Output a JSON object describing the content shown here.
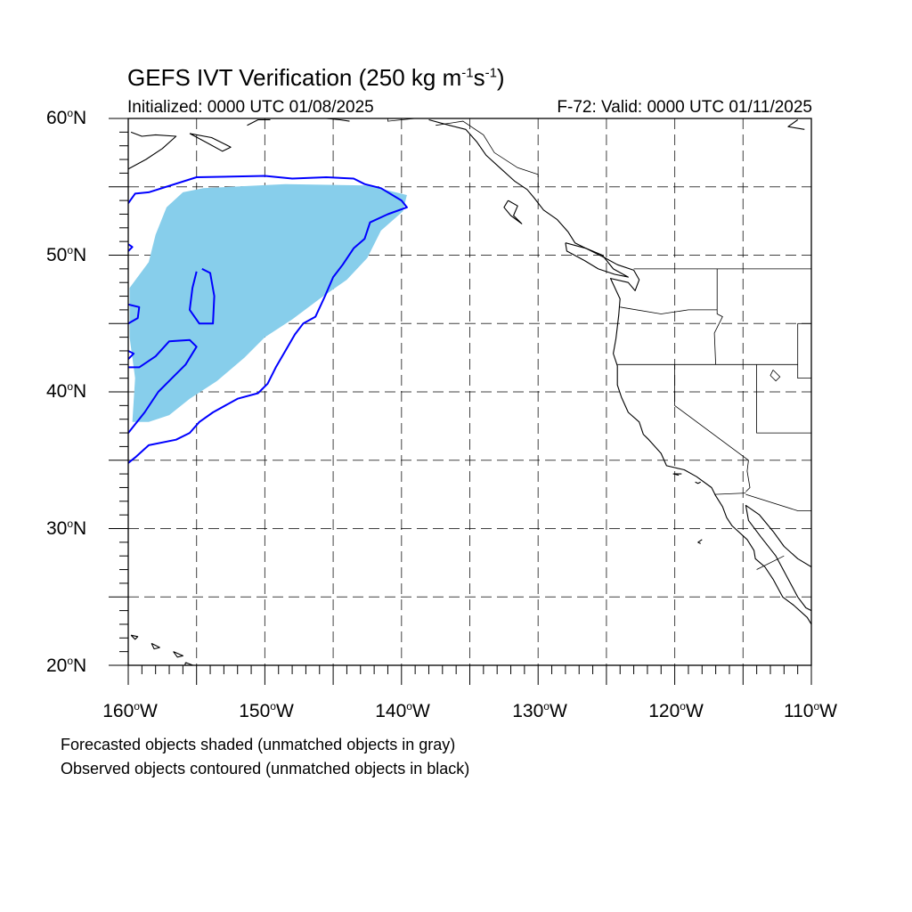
{
  "title": {
    "main": "GEFS IVT Verification (250 kg m",
    "exp1": "-1",
    "mid": "s",
    "exp2": "-1",
    "end": ")"
  },
  "subtitle_left": "Initialized: 0000 UTC 01/08/2025",
  "subtitle_right": "F-72: Valid: 0000 UTC 01/11/2025",
  "lat_labels": [
    {
      "deg": "60",
      "hemi": "N"
    },
    {
      "deg": "50",
      "hemi": "N"
    },
    {
      "deg": "40",
      "hemi": "N"
    },
    {
      "deg": "30",
      "hemi": "N"
    },
    {
      "deg": "20",
      "hemi": "N"
    }
  ],
  "lon_labels": [
    {
      "deg": "160",
      "hemi": "W"
    },
    {
      "deg": "150",
      "hemi": "W"
    },
    {
      "deg": "140",
      "hemi": "W"
    },
    {
      "deg": "130",
      "hemi": "W"
    },
    {
      "deg": "120",
      "hemi": "W"
    },
    {
      "deg": "110",
      "hemi": "W"
    }
  ],
  "footer_line1": "Forecasted objects shaded (unmatched objects in gray)",
  "footer_line2": "Observed objects contoured (unmatched objects in black)",
  "colors": {
    "forecast_fill": "#87ceeb",
    "observed_contour": "#0000ff",
    "coastline": "#000000",
    "grid": "#000000"
  },
  "map_extent": {
    "lon_min": -160,
    "lon_max": -110,
    "lat_min": 20,
    "lat_max": 60
  },
  "forecast_object": [
    [
      -159.9,
      47.6
    ],
    [
      -158.5,
      49.5
    ],
    [
      -158.0,
      51.5
    ],
    [
      -157.2,
      53.5
    ],
    [
      -156.0,
      54.6
    ],
    [
      -154.5,
      54.9
    ],
    [
      -148.5,
      55.2
    ],
    [
      -142.5,
      55.1
    ],
    [
      -139.6,
      54.4
    ],
    [
      -139.9,
      53.2
    ],
    [
      -141.5,
      51.8
    ],
    [
      -142.5,
      49.8
    ],
    [
      -144.0,
      48.2
    ],
    [
      -146.0,
      46.8
    ],
    [
      -148.0,
      45.3
    ],
    [
      -150.0,
      44.0
    ],
    [
      -151.5,
      42.5
    ],
    [
      -153.5,
      40.8
    ],
    [
      -155.5,
      39.5
    ],
    [
      -157.0,
      38.3
    ],
    [
      -158.5,
      37.8
    ],
    [
      -159.7,
      37.8
    ],
    [
      -159.5,
      41.0
    ],
    [
      -159.9,
      44.0
    ]
  ],
  "observed_contours": [
    [
      [
        -160.0,
        53.8
      ],
      [
        -159.5,
        54.5
      ],
      [
        -158.5,
        54.6
      ],
      [
        -155.0,
        55.7
      ],
      [
        -150.0,
        55.8
      ],
      [
        -148.0,
        55.6
      ],
      [
        -145.5,
        55.7
      ],
      [
        -143.5,
        55.6
      ],
      [
        -142.7,
        55.2
      ],
      [
        -141.5,
        54.9
      ],
      [
        -140.0,
        54.0
      ],
      [
        -139.6,
        53.5
      ],
      [
        -141.0,
        53.0
      ],
      [
        -142.3,
        52.4
      ],
      [
        -142.7,
        51.2
      ],
      [
        -143.5,
        50.5
      ],
      [
        -144.3,
        49.3
      ],
      [
        -145.0,
        48.4
      ],
      [
        -145.6,
        47.0
      ],
      [
        -146.3,
        45.5
      ],
      [
        -147.2,
        45.0
      ],
      [
        -147.8,
        44.2
      ],
      [
        -148.5,
        43.0
      ],
      [
        -149.2,
        41.8
      ],
      [
        -149.8,
        40.6
      ],
      [
        -150.5,
        39.9
      ],
      [
        -152.0,
        39.5
      ],
      [
        -153.8,
        38.5
      ],
      [
        -154.8,
        37.8
      ],
      [
        -155.5,
        37.0
      ],
      [
        -156.5,
        36.5
      ],
      [
        -158.5,
        36.1
      ],
      [
        -159.5,
        35.2
      ],
      [
        -160.0,
        34.8
      ]
    ],
    [
      [
        -160.0,
        37.0
      ],
      [
        -158.8,
        38.5
      ],
      [
        -157.8,
        40.0
      ],
      [
        -156.8,
        41.0
      ],
      [
        -155.8,
        42.0
      ],
      [
        -155.0,
        43.3
      ],
      [
        -155.5,
        43.8
      ],
      [
        -157.0,
        43.7
      ],
      [
        -158.0,
        42.6
      ],
      [
        -159.2,
        41.8
      ],
      [
        -160.0,
        41.8
      ]
    ],
    [
      [
        -154.6,
        49.0
      ],
      [
        -154.0,
        48.7
      ],
      [
        -153.7,
        47.0
      ],
      [
        -153.8,
        45.0
      ],
      [
        -154.8,
        45.0
      ],
      [
        -155.5,
        46.0
      ],
      [
        -155.3,
        47.6
      ],
      [
        -155.0,
        48.8
      ]
    ],
    [
      [
        -160.0,
        46.4
      ],
      [
        -159.2,
        46.2
      ],
      [
        -159.3,
        45.4
      ],
      [
        -160.0,
        45.0
      ]
    ],
    [
      [
        -160.0,
        50.8
      ],
      [
        -159.7,
        50.6
      ],
      [
        -160.0,
        50.3
      ]
    ],
    [
      [
        -160.0,
        43.0
      ],
      [
        -159.6,
        42.8
      ],
      [
        -160.0,
        42.4
      ]
    ]
  ],
  "coastlines": [
    [
      [
        -138.0,
        59.9
      ],
      [
        -136.5,
        59.5
      ],
      [
        -135.3,
        59.2
      ],
      [
        -134.5,
        58.3
      ],
      [
        -133.8,
        57.3
      ],
      [
        -132.8,
        56.4
      ],
      [
        -131.7,
        55.4
      ],
      [
        -130.8,
        54.8
      ],
      [
        -130.3,
        54.2
      ],
      [
        -129.6,
        53.3
      ],
      [
        -128.6,
        52.6
      ],
      [
        -127.8,
        51.7
      ],
      [
        -127.3,
        50.9
      ],
      [
        -126.1,
        50.3
      ],
      [
        -125.1,
        49.8
      ],
      [
        -124.2,
        49.3
      ],
      [
        -123.0,
        48.9
      ],
      [
        -122.6,
        48.2
      ],
      [
        -122.9,
        47.4
      ],
      [
        -123.4,
        48.0
      ],
      [
        -124.7,
        48.3
      ],
      [
        -124.0,
        46.8
      ],
      [
        -124.1,
        45.6
      ],
      [
        -124.3,
        43.9
      ],
      [
        -124.5,
        42.8
      ],
      [
        -124.2,
        41.9
      ],
      [
        -124.2,
        40.5
      ],
      [
        -123.9,
        39.6
      ],
      [
        -123.4,
        38.5
      ],
      [
        -122.6,
        37.8
      ],
      [
        -122.3,
        36.9
      ],
      [
        -121.9,
        36.5
      ],
      [
        -121.0,
        35.5
      ],
      [
        -120.6,
        34.6
      ],
      [
        -119.3,
        34.3
      ],
      [
        -118.4,
        33.8
      ],
      [
        -117.3,
        33.0
      ],
      [
        -117.0,
        32.4
      ],
      [
        -116.5,
        31.6
      ],
      [
        -116.2,
        30.8
      ],
      [
        -115.8,
        30.2
      ],
      [
        -114.7,
        29.2
      ],
      [
        -114.2,
        28.4
      ],
      [
        -114.1,
        27.8
      ],
      [
        -113.4,
        27.2
      ],
      [
        -112.8,
        26.3
      ],
      [
        -112.1,
        25.0
      ],
      [
        -111.3,
        24.4
      ],
      [
        -110.3,
        23.5
      ],
      [
        -110.0,
        23.0
      ]
    ],
    [
      [
        -110.0,
        27.2
      ],
      [
        -111.0,
        27.8
      ],
      [
        -112.0,
        28.7
      ],
      [
        -112.8,
        29.8
      ],
      [
        -113.8,
        31.0
      ],
      [
        -114.8,
        31.7
      ],
      [
        -114.6,
        30.6
      ],
      [
        -113.7,
        29.4
      ],
      [
        -112.6,
        28.0
      ],
      [
        -111.8,
        26.5
      ],
      [
        -111.0,
        25.0
      ],
      [
        -110.4,
        24.2
      ],
      [
        -110.0,
        24.0
      ]
    ],
    [
      [
        -132.2,
        54.0
      ],
      [
        -131.5,
        53.6
      ],
      [
        -131.8,
        52.9
      ],
      [
        -131.2,
        52.3
      ],
      [
        -132.0,
        52.9
      ],
      [
        -132.5,
        53.5
      ],
      [
        -132.2,
        54.0
      ]
    ],
    [
      [
        -128.0,
        50.9
      ],
      [
        -126.5,
        50.5
      ],
      [
        -125.3,
        50.0
      ],
      [
        -124.5,
        49.0
      ],
      [
        -123.4,
        48.4
      ],
      [
        -124.4,
        48.6
      ],
      [
        -125.6,
        49.0
      ],
      [
        -126.6,
        49.6
      ],
      [
        -127.9,
        50.3
      ],
      [
        -128.0,
        50.9
      ]
    ],
    [
      [
        -159.8,
        59.0
      ],
      [
        -159.0,
        58.7
      ],
      [
        -158.0,
        58.8
      ],
      [
        -156.5,
        58.7
      ],
      [
        -157.5,
        57.8
      ],
      [
        -158.7,
        57.0
      ],
      [
        -160.0,
        56.3
      ]
    ],
    [
      [
        -155.5,
        58.9
      ],
      [
        -154.2,
        58.2
      ],
      [
        -153.1,
        57.6
      ],
      [
        -152.5,
        57.9
      ],
      [
        -153.9,
        58.6
      ],
      [
        -155.5,
        58.9
      ]
    ],
    [
      [
        -151.3,
        59.5
      ],
      [
        -150.5,
        59.9
      ],
      [
        -149.6,
        59.9
      ]
    ],
    [
      [
        -145.5,
        60.0
      ],
      [
        -144.5,
        59.9
      ],
      [
        -143.8,
        59.8
      ]
    ],
    [
      [
        -155.8,
        20.2
      ],
      [
        -155.0,
        19.9
      ],
      [
        -155.1,
        19.3
      ],
      [
        -155.9,
        19.0
      ],
      [
        -155.9,
        19.8
      ],
      [
        -155.8,
        20.2
      ]
    ],
    [
      [
        -156.7,
        21.0
      ],
      [
        -156.0,
        20.7
      ],
      [
        -156.4,
        20.6
      ],
      [
        -156.7,
        21.0
      ]
    ],
    [
      [
        -158.3,
        21.6
      ],
      [
        -157.7,
        21.3
      ],
      [
        -158.1,
        21.2
      ],
      [
        -158.3,
        21.6
      ]
    ],
    [
      [
        -159.8,
        22.2
      ],
      [
        -159.3,
        22.1
      ],
      [
        -159.5,
        21.9
      ],
      [
        -159.8,
        22.2
      ]
    ],
    [
      [
        -111.0,
        59.9
      ],
      [
        -111.7,
        59.4
      ],
      [
        -110.5,
        59.2
      ]
    ],
    [
      [
        -118.1,
        33.4
      ],
      [
        -118.3,
        33.3
      ],
      [
        -118.5,
        33.4
      ]
    ],
    [
      [
        -119.5,
        34.0
      ],
      [
        -120.1,
        34.0
      ],
      [
        -119.7,
        33.9
      ]
    ],
    [
      [
        -118.0,
        29.2
      ],
      [
        -118.3,
        29.0
      ],
      [
        -118.1,
        28.9
      ]
    ]
  ],
  "borders": [
    [
      [
        -141.0,
        60.0
      ],
      [
        -141.0,
        59.8
      ],
      [
        -139.0,
        60.0
      ]
    ],
    [
      [
        -137.5,
        59.5
      ],
      [
        -135.5,
        59.8
      ],
      [
        -134.0,
        58.8
      ],
      [
        -133.2,
        57.5
      ],
      [
        -131.5,
        56.4
      ],
      [
        -130.0,
        55.9
      ],
      [
        -130.0,
        55.0
      ]
    ],
    [
      [
        -123.0,
        49.0
      ],
      [
        -110.0,
        49.0
      ]
    ],
    [
      [
        -124.0,
        46.2
      ],
      [
        -121.0,
        45.7
      ],
      [
        -119.0,
        46.0
      ],
      [
        -116.9,
        46.0
      ]
    ],
    [
      [
        -116.9,
        49.0
      ],
      [
        -116.9,
        45.7
      ],
      [
        -116.5,
        45.5
      ],
      [
        -117.1,
        44.3
      ],
      [
        -117.0,
        42.0
      ]
    ],
    [
      [
        -124.2,
        42.0
      ],
      [
        -111.0,
        42.0
      ]
    ],
    [
      [
        -120.0,
        42.0
      ],
      [
        -120.0,
        39.0
      ],
      [
        -114.6,
        35.0
      ],
      [
        -114.7,
        34.2
      ],
      [
        -114.5,
        33.0
      ],
      [
        -114.8,
        32.7
      ]
    ],
    [
      [
        -114.8,
        32.6
      ],
      [
        -117.1,
        32.5
      ]
    ],
    [
      [
        -114.8,
        32.5
      ],
      [
        -111.0,
        31.3
      ],
      [
        -110.0,
        31.3
      ]
    ],
    [
      [
        -114.0,
        42.0
      ],
      [
        -114.0,
        37.0
      ],
      [
        -110.0,
        37.0
      ]
    ],
    [
      [
        -111.0,
        45.0
      ],
      [
        -111.0,
        41.0
      ],
      [
        -110.0,
        41.0
      ]
    ],
    [
      [
        -111.0,
        45.0
      ],
      [
        -110.0,
        45.0
      ]
    ],
    [
      [
        -114.0,
        27.0
      ],
      [
        -112.0,
        28.0
      ]
    ]
  ],
  "lakes": [
    [
      [
        -112.8,
        41.6
      ],
      [
        -112.3,
        41.1
      ],
      [
        -112.6,
        40.8
      ],
      [
        -113.0,
        41.2
      ],
      [
        -112.8,
        41.6
      ]
    ]
  ]
}
